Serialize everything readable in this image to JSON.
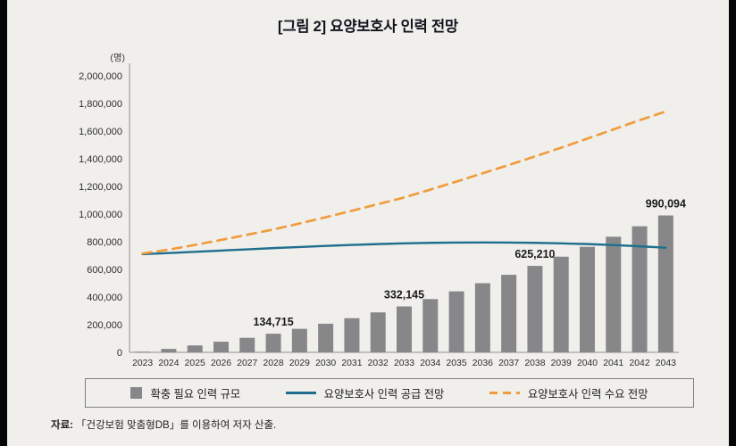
{
  "colors": {
    "background": "#f0efec",
    "bar": "#87878a",
    "supply_line": "#1e6f8e",
    "demand_line": "#f09c3c",
    "axis": "#8f8f8f"
  },
  "source": {
    "label": "자료:",
    "text": "「건강보험 맞춤형DB」를 이용하여 저자 산출."
  },
  "chart_data": {
    "type": "bar+line",
    "title": "[그림 2] 요양보호사 인력 전망",
    "y_unit": "(명)",
    "categories": [
      2023,
      2024,
      2025,
      2026,
      2027,
      2028,
      2029,
      2030,
      2031,
      2032,
      2033,
      2034,
      2035,
      2036,
      2037,
      2038,
      2039,
      2040,
      2041,
      2042,
      2043
    ],
    "series": [
      {
        "name": "확충 필요 인력 규모",
        "type": "bar",
        "color": "#87878a",
        "values": [
          5000,
          25000,
          50000,
          77000,
          105000,
          134715,
          170000,
          207000,
          247000,
          289000,
          332145,
          385000,
          441000,
          500000,
          561000,
          625210,
          692000,
          763000,
          836000,
          912000,
          990094
        ]
      },
      {
        "name": "요양보호사 인력 공급 전망",
        "type": "line",
        "color": "#1e6f8e",
        "values": [
          710000,
          718000,
          727000,
          736000,
          745000,
          754000,
          762000,
          770000,
          777000,
          783000,
          788000,
          792000,
          794000,
          795000,
          794000,
          792000,
          788000,
          783000,
          776000,
          767000,
          757000
        ]
      },
      {
        "name": "요양보호사 인력 수요 전망",
        "type": "line-dashed",
        "color": "#f09c3c",
        "values": [
          715000,
          743000,
          777000,
          813000,
          850000,
          889000,
          932000,
          977000,
          1024000,
          1072000,
          1120000,
          1177000,
          1235000,
          1295000,
          1355000,
          1417000,
          1480000,
          1546000,
          1612000,
          1679000,
          1742000
        ]
      }
    ],
    "annotations": [
      {
        "category": 2028,
        "text": "134,715"
      },
      {
        "category": 2033,
        "text": "332,145"
      },
      {
        "category": 2038,
        "text": "625,210"
      },
      {
        "category": 2043,
        "text": "990,094"
      }
    ],
    "ylim": [
      0,
      2000000
    ],
    "yticks": [
      0,
      200000,
      400000,
      600000,
      800000,
      1000000,
      1200000,
      1400000,
      1600000,
      1800000,
      2000000
    ],
    "grid": false,
    "legend_position": "bottom-box"
  }
}
